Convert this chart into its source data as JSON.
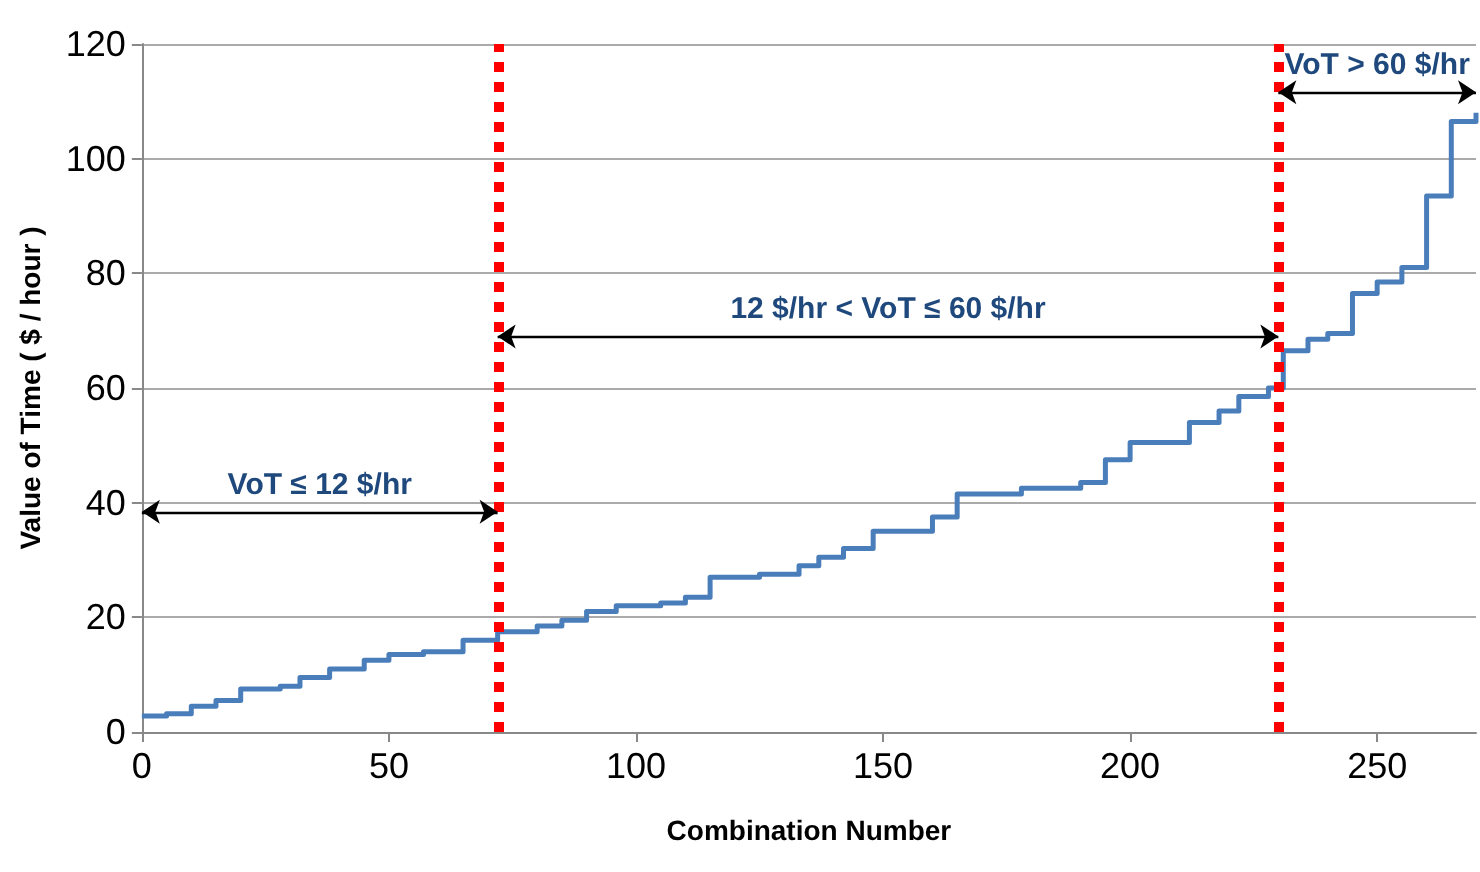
{
  "chart_data": {
    "type": "step",
    "xlabel": "Combination Number",
    "ylabel": "Value of Time ( $ / hour )",
    "x": [
      0,
      5,
      10,
      15,
      20,
      28,
      32,
      38,
      45,
      50,
      57,
      65,
      72,
      80,
      85,
      90,
      96,
      105,
      110,
      115,
      125,
      133,
      137,
      142,
      148,
      160,
      165,
      178,
      190,
      195,
      200,
      212,
      218,
      222,
      228,
      231,
      236,
      240,
      245,
      250,
      255,
      260,
      265,
      270
    ],
    "series": [
      {
        "color": "#4a7ebb",
        "values": [
          2.8,
          3.2,
          4.5,
          5.5,
          7.5,
          8,
          9.5,
          11,
          12.5,
          13.5,
          14,
          16,
          17.5,
          18.5,
          19.5,
          21,
          22,
          22.5,
          23.5,
          27,
          27.5,
          29,
          30.5,
          32,
          35,
          37.5,
          41.5,
          42.5,
          43.5,
          47.5,
          50.5,
          54,
          56,
          58.5,
          60,
          66.5,
          68.5,
          69.5,
          76.5,
          78.5,
          81,
          93.5,
          106.5,
          108
        ]
      }
    ],
    "xlim": [
      0,
      270
    ],
    "xticks": [
      0,
      50,
      100,
      150,
      200,
      250
    ],
    "ylim": [
      0,
      120
    ],
    "yticks": [
      0,
      20,
      40,
      60,
      80,
      100,
      120
    ],
    "grid": "y",
    "line_style": "solid",
    "marker": "none",
    "ref_lines": [
      {
        "axis": "x",
        "value": 72,
        "label": null,
        "color": "#ff0000",
        "line_style": "dotted"
      },
      {
        "axis": "x",
        "value": 230,
        "label": null,
        "color": "#ff0000",
        "line_style": "dotted"
      }
    ],
    "annotations": [
      "VoT ≤ 12 $/hr",
      "12 $/hr < VoT ≤ 60 $/hr",
      "VoT > 60 $/hr"
    ]
  }
}
